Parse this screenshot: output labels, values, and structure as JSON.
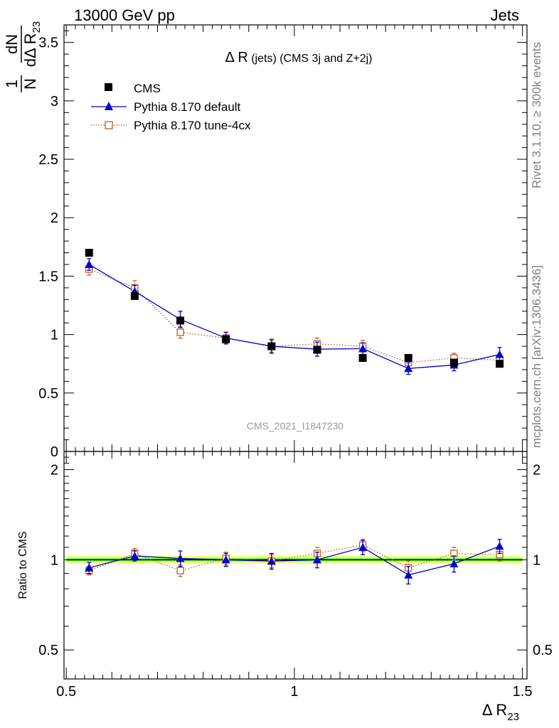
{
  "header": {
    "left": "13000 GeV pp",
    "right": "Jets"
  },
  "side_labels": {
    "rivet": "Rivet 3.1.10, ≥ 300k events",
    "mcplots": "mcplots.cern.ch [arXiv:1306.3436]"
  },
  "watermark": "CMS_2021_I1847230",
  "colors": {
    "cms": "#000000",
    "default": "#0000d0",
    "tune": "#c05a1f",
    "band_inner": "#66ff66",
    "band_outer": "#ffff66"
  },
  "chart_data": [
    {
      "panel": "main",
      "type": "scatter",
      "title_main": "Δ R",
      "title_suffix": " (jets) (CMS 3j and Z+2j)",
      "ylabel": "1/N dN/dΔR23",
      "ylim": [
        0,
        3.65
      ],
      "xlim": [
        0.495,
        1.51
      ],
      "yticks": [
        "0",
        "0.5",
        "1",
        "1.5",
        "2",
        "2.5",
        "3",
        "3.5"
      ],
      "legend": [
        "CMS",
        "Pythia 8.170 default",
        "Pythia 8.170 tune-4cx"
      ],
      "legend_position": "top-left",
      "x": [
        0.55,
        0.65,
        0.75,
        0.85,
        0.95,
        1.05,
        1.15,
        1.25,
        1.35,
        1.45
      ],
      "series": [
        {
          "name": "CMS",
          "style": "squares",
          "values": [
            1.7,
            1.33,
            1.12,
            0.96,
            0.9,
            0.87,
            0.8,
            0.8,
            0.76,
            0.75
          ],
          "errors": [
            0.01,
            0.01,
            0.01,
            0.01,
            0.01,
            0.01,
            0.01,
            0.01,
            0.01,
            0.01
          ]
        },
        {
          "name": "Pythia 8.170 default",
          "style": "triangles-line",
          "values": [
            1.6,
            1.37,
            1.13,
            0.97,
            0.9,
            0.875,
            0.88,
            0.71,
            0.74,
            0.83
          ],
          "errors": [
            0.05,
            0.05,
            0.07,
            0.05,
            0.06,
            0.06,
            0.05,
            0.05,
            0.05,
            0.06
          ]
        },
        {
          "name": "Pythia 8.170 tune-4cx",
          "style": "open-squares-dotted",
          "values": [
            1.56,
            1.4,
            1.02,
            0.97,
            0.9,
            0.92,
            0.9,
            0.76,
            0.8,
            0.78
          ],
          "errors": [
            0.05,
            0.06,
            0.05,
            0.05,
            0.05,
            0.05,
            0.05,
            0.05,
            0.04,
            0.05
          ]
        }
      ]
    },
    {
      "panel": "ratio",
      "type": "scatter",
      "ylabel": "Ratio to CMS",
      "xlabel_main": "Δ R",
      "xlabel_sub": "23",
      "log_y": true,
      "ylim": [
        0.4,
        2.3
      ],
      "xlim": [
        0.495,
        1.51
      ],
      "xticks": [
        "0.5",
        "1",
        "1.5"
      ],
      "yticks": [
        "0.5",
        "1",
        "2"
      ],
      "x": [
        0.55,
        0.65,
        0.75,
        0.85,
        0.95,
        1.05,
        1.15,
        1.25,
        1.35,
        1.45
      ],
      "band_inner": 0.013,
      "band_outer": 0.03,
      "series": [
        {
          "name": "Pythia 8.170 default",
          "values": [
            0.94,
            1.03,
            1.01,
            1.0,
            0.99,
            1.0,
            1.1,
            0.89,
            0.97,
            1.11
          ],
          "errors": [
            0.04,
            0.04,
            0.06,
            0.05,
            0.06,
            0.06,
            0.06,
            0.06,
            0.06,
            0.06
          ]
        },
        {
          "name": "Pythia 8.170 tune-4cx",
          "values": [
            0.92,
            1.05,
            0.92,
            1.01,
            0.99,
            1.05,
            1.12,
            0.94,
            1.05,
            1.04
          ],
          "errors": [
            0.03,
            0.04,
            0.04,
            0.05,
            0.05,
            0.05,
            0.05,
            0.05,
            0.05,
            0.05
          ]
        }
      ]
    }
  ]
}
